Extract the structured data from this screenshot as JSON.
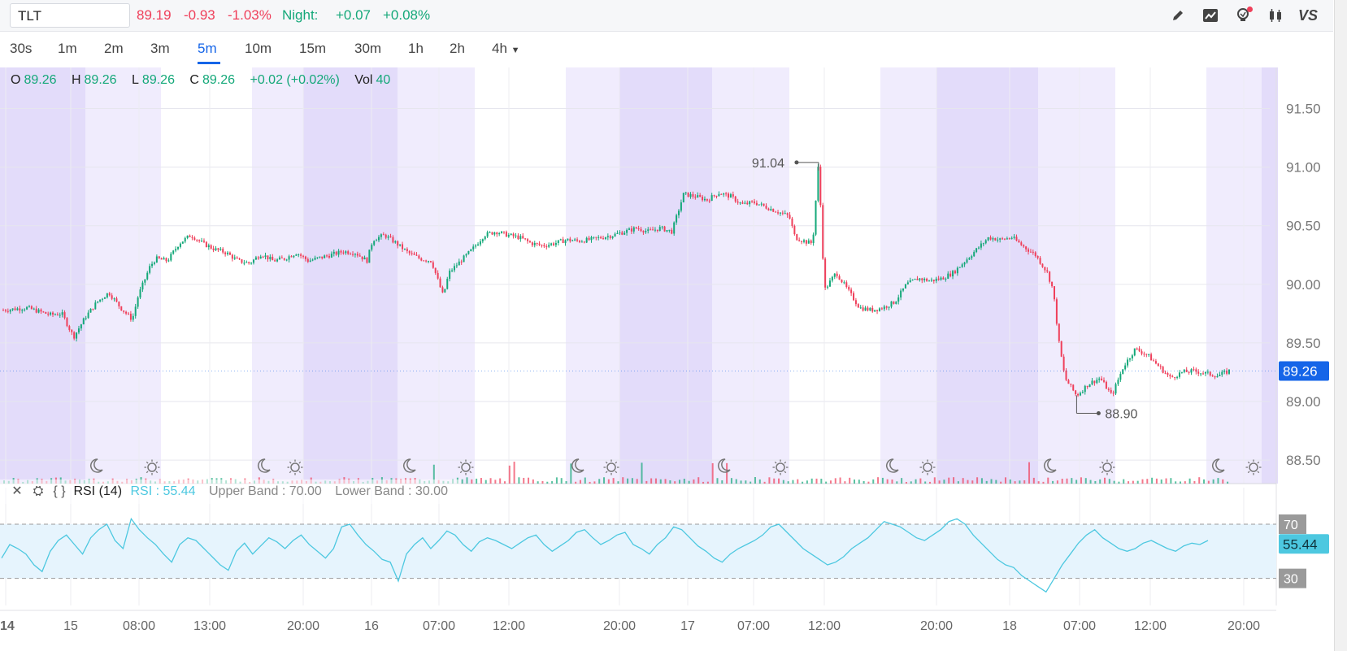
{
  "header": {
    "symbol": "TLT",
    "last": "89.19",
    "change": "-0.93",
    "change_pct": "-1.03%",
    "night_label": "Night:",
    "night_change": "+0.07",
    "night_change_pct": "+0.08%"
  },
  "toolbar": {
    "icons": [
      "pencil-icon",
      "trend-chart-icon",
      "lightbulb-icon",
      "candlestick-icon",
      "vs-compare-icon"
    ],
    "vs_label": "VS"
  },
  "intervals": {
    "items": [
      "30s",
      "1m",
      "2m",
      "3m",
      "5m",
      "10m",
      "15m",
      "30m",
      "1h",
      "2h",
      "4h"
    ],
    "active": "5m"
  },
  "ohlc": {
    "o_label": "O",
    "o": "89.26",
    "h_label": "H",
    "h": "89.26",
    "l_label": "L",
    "l": "89.26",
    "c_label": "C",
    "c": "89.26",
    "chg": "+0.02 (+0.02%)",
    "vol_label": "Vol",
    "vol": "40"
  },
  "rsi": {
    "name": "RSI (14)",
    "value_text": "RSI : 55.44",
    "upper_text": "Upper Band : 70.00",
    "lower_text": "Lower Band : 30.00"
  },
  "colors": {
    "up": "#14a879",
    "down": "#ef3f5a",
    "accent": "#1565e8",
    "rsi": "#4dc8e0",
    "night_session": "#e3dcfa",
    "ext_session": "#f0ecfd"
  },
  "chart_data": [
    {
      "type": "candlestick",
      "title": "",
      "y_ticks": [
        "91.50",
        "91.00",
        "90.50",
        "90.00",
        "89.50",
        "89.00",
        "88.50"
      ],
      "ylim": [
        88.3,
        91.85
      ],
      "x_ticks": [
        "14",
        "15",
        "08:00",
        "13:00",
        "20:00",
        "16",
        "07:00",
        "12:00",
        "20:00",
        "17",
        "07:00",
        "12:00",
        "20:00",
        "18",
        "07:00",
        "12:00",
        "20:00"
      ],
      "last_price": "89.26",
      "high_marker": {
        "label": "91.04",
        "value": 91.04
      },
      "low_marker": {
        "label": "88.90",
        "value": 88.9
      },
      "price_path": [
        [
          0,
          89.78
        ],
        [
          4,
          89.8
        ],
        [
          8,
          89.74
        ],
        [
          10,
          89.75
        ],
        [
          12,
          89.55
        ],
        [
          14,
          89.72
        ],
        [
          16,
          89.85
        ],
        [
          18,
          89.93
        ],
        [
          20,
          89.8
        ],
        [
          22,
          89.7
        ],
        [
          23,
          89.9
        ],
        [
          25,
          90.15
        ],
        [
          26,
          90.22
        ],
        [
          28,
          90.2
        ],
        [
          30,
          90.35
        ],
        [
          32,
          90.42
        ],
        [
          34,
          90.35
        ],
        [
          36,
          90.3
        ],
        [
          38,
          90.27
        ],
        [
          40,
          90.2
        ],
        [
          42,
          90.18
        ],
        [
          44,
          90.26
        ],
        [
          46,
          90.2
        ],
        [
          48,
          90.22
        ],
        [
          50,
          90.27
        ],
        [
          52,
          90.2
        ],
        [
          55,
          90.24
        ],
        [
          58,
          90.28
        ],
        [
          60,
          90.27
        ],
        [
          62,
          90.2
        ],
        [
          63,
          90.38
        ],
        [
          65,
          90.42
        ],
        [
          67,
          90.35
        ],
        [
          69,
          90.27
        ],
        [
          71,
          90.22
        ],
        [
          73,
          90.2
        ],
        [
          75,
          89.9
        ],
        [
          76,
          90.1
        ],
        [
          78,
          90.2
        ],
        [
          80,
          90.3
        ],
        [
          82,
          90.42
        ],
        [
          84,
          90.45
        ],
        [
          86,
          90.42
        ],
        [
          88,
          90.4
        ],
        [
          90,
          90.35
        ],
        [
          92,
          90.33
        ],
        [
          94,
          90.35
        ],
        [
          96,
          90.38
        ],
        [
          98,
          90.37
        ],
        [
          100,
          90.38
        ],
        [
          102,
          90.4
        ],
        [
          104,
          90.42
        ],
        [
          106,
          90.45
        ],
        [
          108,
          90.48
        ],
        [
          110,
          90.45
        ],
        [
          112,
          90.48
        ],
        [
          114,
          90.45
        ],
        [
          116,
          90.77
        ],
        [
          118,
          90.75
        ],
        [
          120,
          90.72
        ],
        [
          122,
          90.78
        ],
        [
          124,
          90.75
        ],
        [
          126,
          90.68
        ],
        [
          128,
          90.7
        ],
        [
          130,
          90.66
        ],
        [
          132,
          90.62
        ],
        [
          134,
          90.58
        ],
        [
          135,
          90.4
        ],
        [
          137,
          90.36
        ],
        [
          138,
          90.35
        ],
        [
          139,
          91.04
        ],
        [
          140,
          89.95
        ],
        [
          142,
          90.1
        ],
        [
          144,
          89.95
        ],
        [
          146,
          89.8
        ],
        [
          148,
          89.78
        ],
        [
          150,
          89.8
        ],
        [
          152,
          89.85
        ],
        [
          154,
          90.0
        ],
        [
          156,
          90.05
        ],
        [
          158,
          90.03
        ],
        [
          160,
          90.05
        ],
        [
          162,
          90.1
        ],
        [
          164,
          90.2
        ],
        [
          166,
          90.3
        ],
        [
          168,
          90.4
        ],
        [
          170,
          90.38
        ],
        [
          172,
          90.4
        ],
        [
          174,
          90.32
        ],
        [
          176,
          90.25
        ],
        [
          178,
          90.1
        ],
        [
          179,
          89.95
        ],
        [
          180,
          89.5
        ],
        [
          181,
          89.2
        ],
        [
          183,
          89.05
        ],
        [
          185,
          89.15
        ],
        [
          187,
          89.2
        ],
        [
          189,
          89.05
        ],
        [
          191,
          89.3
        ],
        [
          193,
          89.45
        ],
        [
          195,
          89.4
        ],
        [
          197,
          89.3
        ],
        [
          199,
          89.2
        ],
        [
          201,
          89.25
        ],
        [
          203,
          89.26
        ],
        [
          205,
          89.24
        ],
        [
          207,
          89.22
        ],
        [
          209,
          89.26
        ]
      ]
    },
    {
      "type": "line",
      "title": "RSI (14)",
      "y_ticks": [
        "70",
        "30"
      ],
      "bands": [
        30,
        70
      ],
      "last_value": "55.44",
      "ylim": [
        10,
        85
      ],
      "values": [
        45,
        55,
        52,
        48,
        40,
        35,
        50,
        58,
        62,
        55,
        48,
        60,
        66,
        70,
        58,
        52,
        74,
        66,
        60,
        55,
        48,
        42,
        55,
        60,
        58,
        52,
        46,
        40,
        36,
        50,
        56,
        48,
        54,
        60,
        57,
        52,
        58,
        62,
        55,
        50,
        45,
        52,
        68,
        70,
        62,
        55,
        50,
        44,
        42,
        28,
        48,
        55,
        60,
        52,
        58,
        65,
        62,
        55,
        50,
        57,
        60,
        58,
        55,
        52,
        56,
        60,
        62,
        55,
        50,
        54,
        58,
        64,
        66,
        60,
        55,
        58,
        62,
        64,
        55,
        52,
        48,
        55,
        60,
        68,
        66,
        60,
        54,
        50,
        45,
        42,
        48,
        52,
        55,
        58,
        62,
        68,
        70,
        64,
        58,
        52,
        48,
        44,
        40,
        42,
        46,
        52,
        56,
        60,
        66,
        72,
        70,
        68,
        64,
        60,
        58,
        62,
        66,
        72,
        74,
        70,
        62,
        56,
        50,
        44,
        40,
        38,
        32,
        28,
        24,
        20,
        30,
        40,
        48,
        56,
        62,
        66,
        60,
        56,
        52,
        50,
        52,
        56,
        58,
        55,
        52,
        50,
        54,
        56,
        55,
        58
      ]
    }
  ]
}
